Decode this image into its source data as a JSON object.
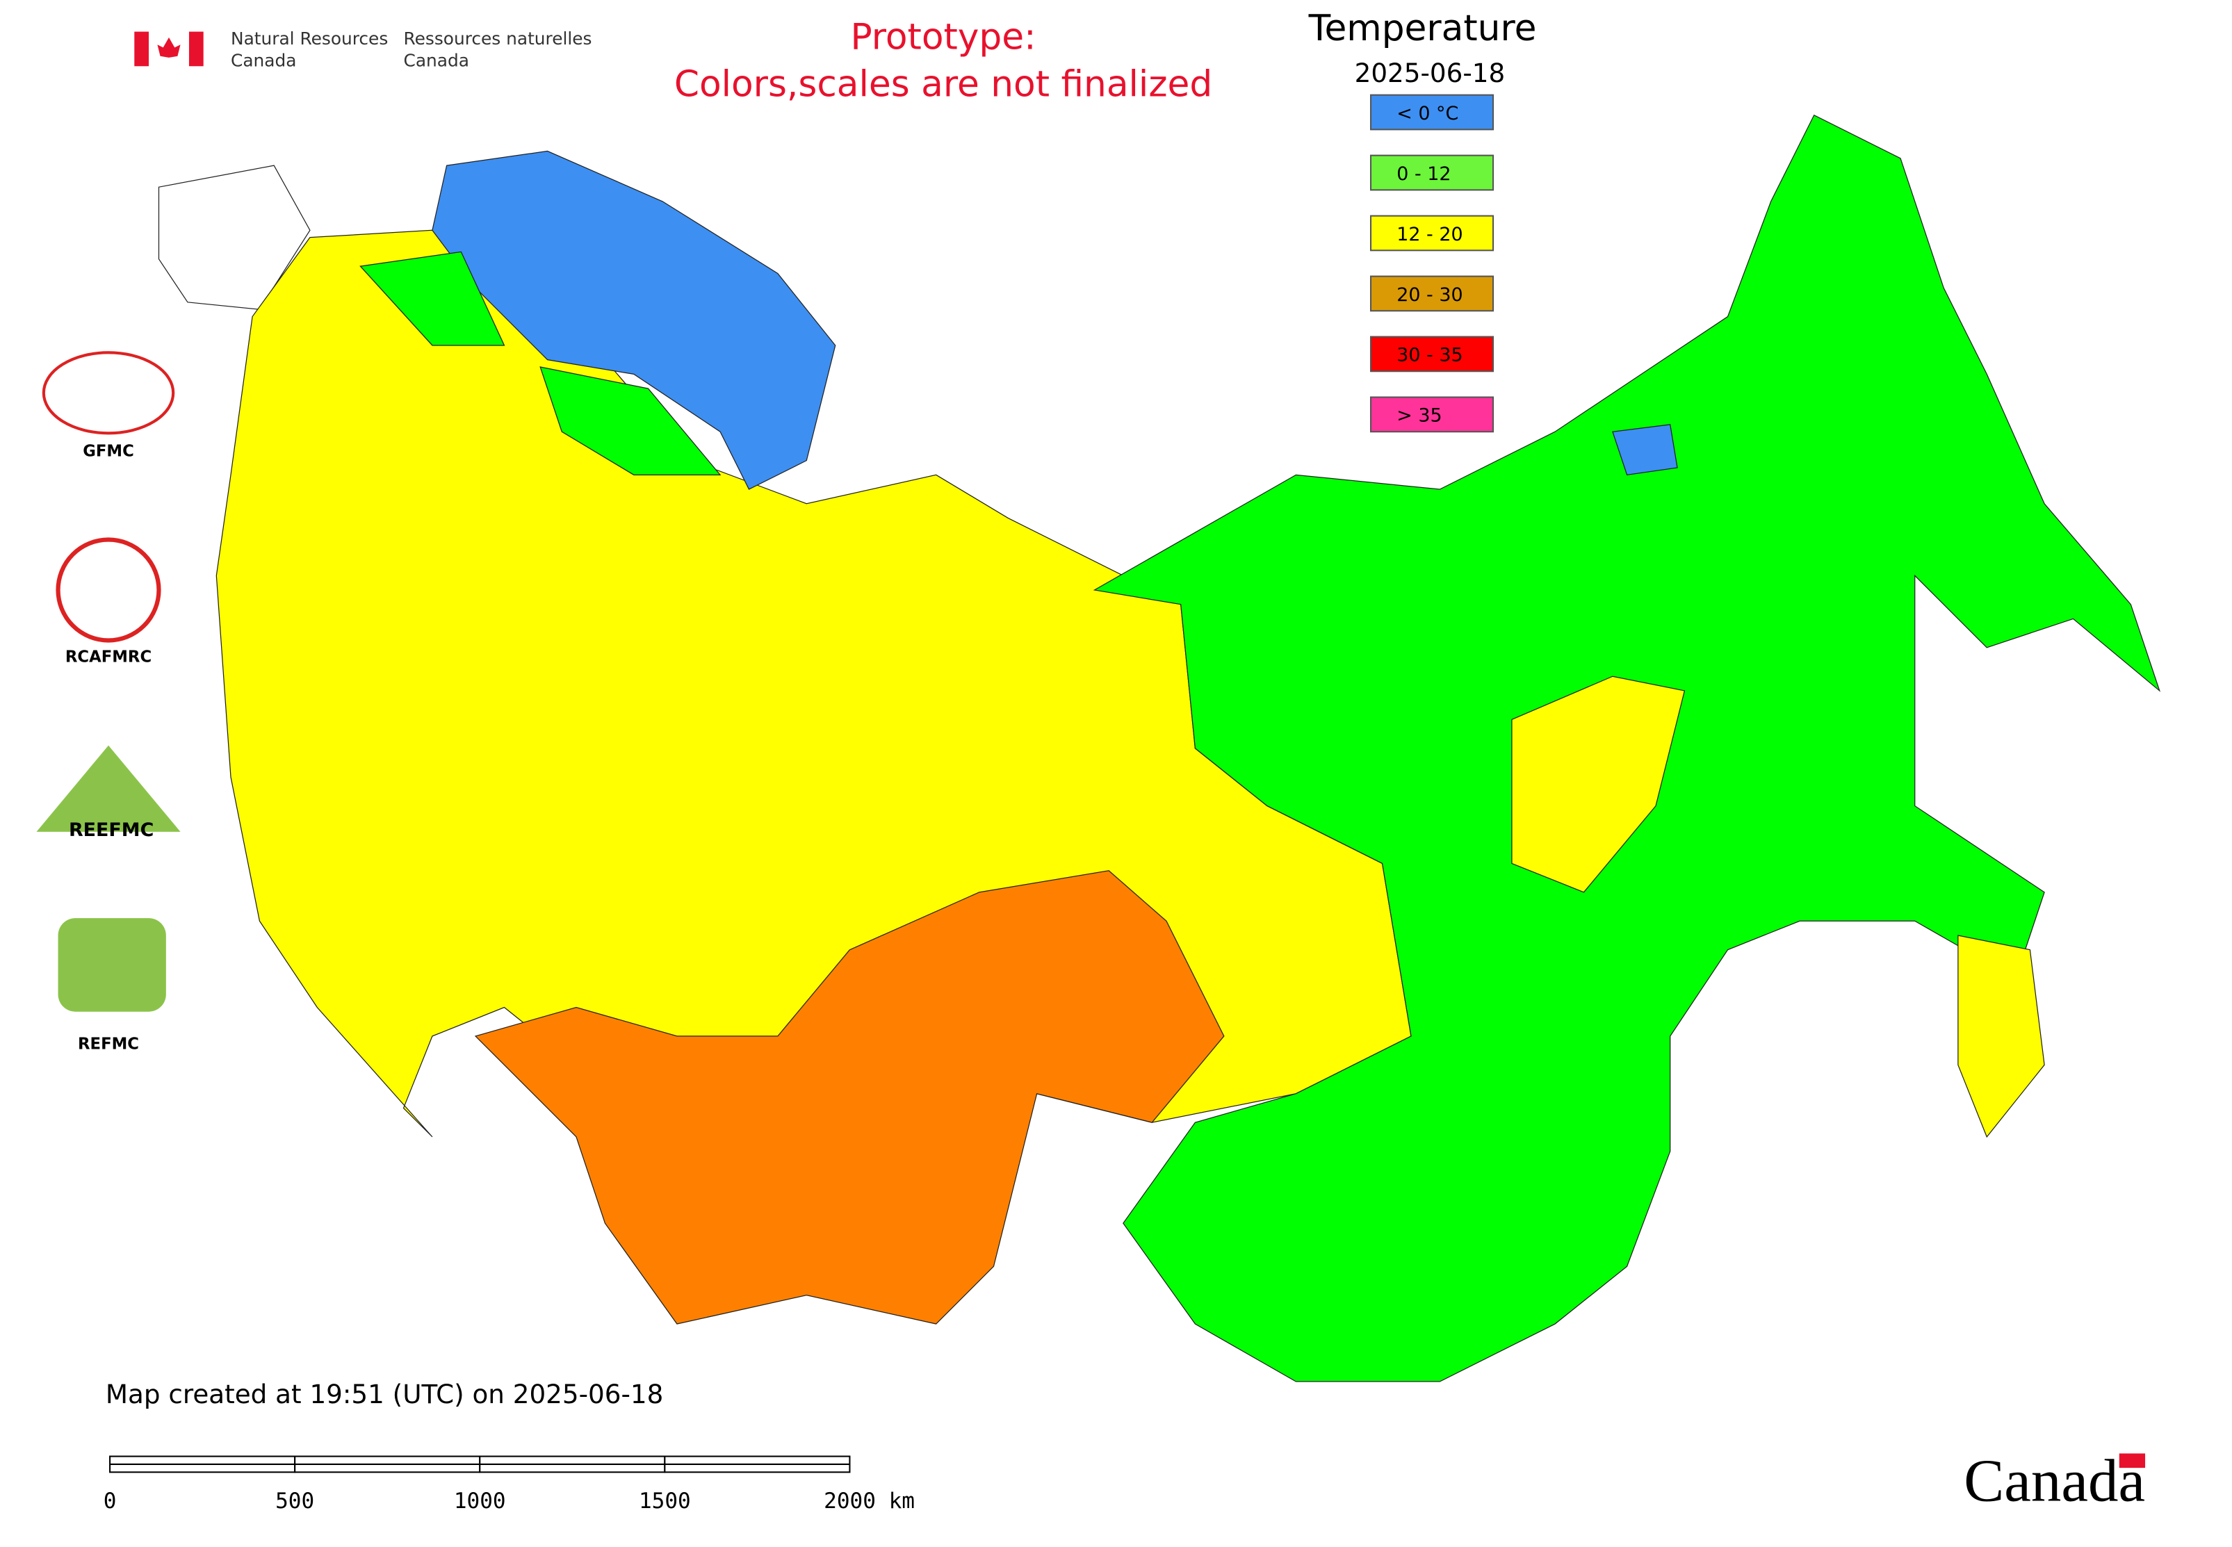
{
  "header": {
    "department_en": [
      "Natural Resources",
      "Canada"
    ],
    "department_fr": [
      "Ressources naturelles",
      "Canada"
    ],
    "notice": [
      "Prototype:",
      "Colors,scales are not finalized"
    ]
  },
  "legend": {
    "title": "Temperature",
    "date": "2025-06-18",
    "items": [
      {
        "label": "< 0 °C",
        "color": "#3d8ff2"
      },
      {
        "label": "0 - 12",
        "color": "#6cf53a"
      },
      {
        "label": "12 - 20",
        "color": "#ffff00"
      },
      {
        "label": "20 - 30",
        "color": "#d99a06"
      },
      {
        "label": "30 - 35",
        "color": "#ff0000"
      },
      {
        "label": "> 35",
        "color": "#ff3399"
      }
    ]
  },
  "logos": [
    "GFMC",
    "RCAFMRC",
    "REEFMC",
    "REFMC"
  ],
  "footer": {
    "created": "Map created at 19:51 (UTC) on 2025-06-18",
    "scale_labels": [
      "0",
      "500",
      "1000",
      "1500",
      "2000 km"
    ],
    "wordmark": "Canada"
  }
}
